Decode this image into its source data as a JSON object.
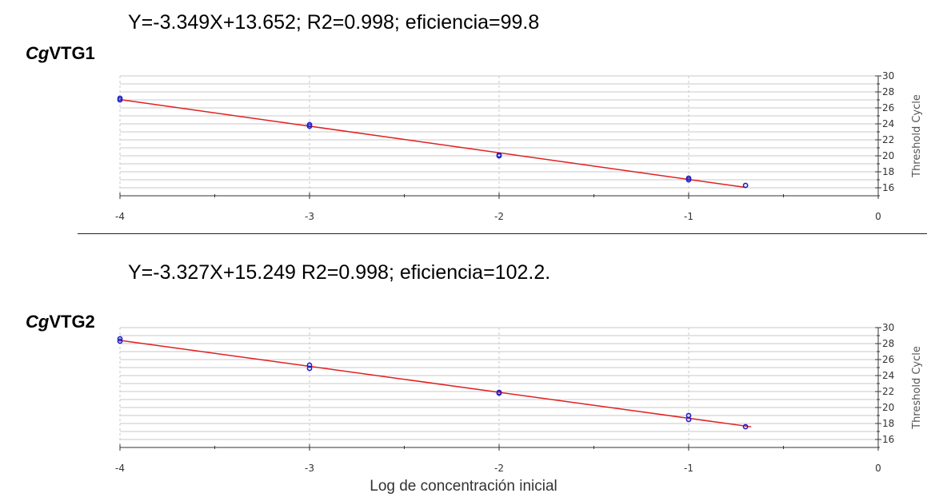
{
  "shared": {
    "xlabel": "Log de concentración inicial"
  },
  "charts": [
    {
      "gene_prefix": "Cg",
      "gene_suffix": "VTG1",
      "equation": "Y=-3.349X+13.652; R2=0.998;  eficiencia=99.8"
    },
    {
      "gene_prefix": "Cg",
      "gene_suffix": "VTG2",
      "equation": "Y=-3.327X+15.249 R2=0.998;  eficiencia=102.2."
    }
  ],
  "colors": {
    "fit_line": "#e02020",
    "points": "#2020c8",
    "grid": "#c8c8c8",
    "axis": "#333333"
  },
  "chart_data": [
    {
      "type": "scatter",
      "title": "Y=-3.349X+13.652; R2=0.998;  eficiencia=99.8",
      "xlabel": "Log de concentración inicial",
      "ylabel": "Threshold Cycle",
      "xlim": [
        -4,
        0
      ],
      "ylim": [
        15,
        30
      ],
      "x_ticks": [
        -4,
        -3,
        -2,
        -1,
        0
      ],
      "y_ticks": [
        16,
        18,
        20,
        22,
        24,
        26,
        28,
        30
      ],
      "grid": true,
      "points": [
        {
          "x": -4,
          "y": 27.2
        },
        {
          "x": -4,
          "y": 27.0
        },
        {
          "x": -3,
          "y": 23.9
        },
        {
          "x": -3,
          "y": 23.7
        },
        {
          "x": -2,
          "y": 20.1
        },
        {
          "x": -2,
          "y": 20.0
        },
        {
          "x": -1,
          "y": 17.2
        },
        {
          "x": -1,
          "y": 17.0
        },
        {
          "x": -0.7,
          "y": 16.3
        }
      ],
      "fit": {
        "slope": -3.349,
        "intercept": 13.652,
        "x_range": [
          -4,
          -0.7
        ],
        "r2": 0.998,
        "efficiency": 99.8
      }
    },
    {
      "type": "scatter",
      "title": "Y=-3.327X+15.249 R2=0.998;  eficiencia=102.2.",
      "xlabel": "Log de concentración inicial",
      "ylabel": "Threshold Cycle",
      "xlim": [
        -4,
        0
      ],
      "ylim": [
        15,
        30
      ],
      "x_ticks": [
        -4,
        -3,
        -2,
        -1,
        0
      ],
      "y_ticks": [
        16,
        18,
        20,
        22,
        24,
        26,
        28,
        30
      ],
      "grid": true,
      "points": [
        {
          "x": -4,
          "y": 28.6
        },
        {
          "x": -4,
          "y": 28.3
        },
        {
          "x": -3,
          "y": 25.3
        },
        {
          "x": -3,
          "y": 24.9
        },
        {
          "x": -2,
          "y": 21.9
        },
        {
          "x": -2,
          "y": 21.8
        },
        {
          "x": -1,
          "y": 19.0
        },
        {
          "x": -1,
          "y": 18.5
        },
        {
          "x": -0.7,
          "y": 17.6
        }
      ],
      "fit": {
        "slope": -3.327,
        "intercept": 15.249,
        "x_range": [
          -4,
          -0.67
        ],
        "r2": 0.998,
        "efficiency": 102.2
      }
    }
  ]
}
